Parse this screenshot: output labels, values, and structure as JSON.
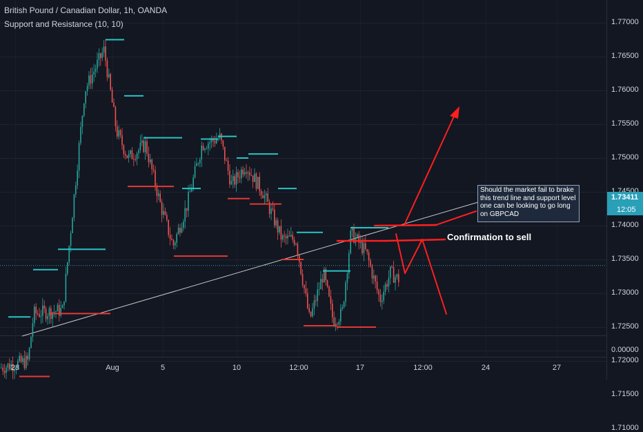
{
  "header": {
    "title": "British Pound / Canadian Dollar, 1h, OANDA",
    "indicator": "Support and Resistance (10, 10)"
  },
  "price_tag": {
    "price": "1.73411",
    "countdown": "12:05"
  },
  "annotations": {
    "note": "Should the market fail to brake this trend line and support level one can be looking to go long on GBPCAD",
    "confirm": "Confirmation to sell"
  },
  "colors": {
    "background": "#131722",
    "up": "#26a69a",
    "down": "#ef5350",
    "resistance": "#26c6c6",
    "support": "#e53935",
    "arrow": "#ff1f1f",
    "trendline": "#c8c8c8",
    "price_line": "#2a9fb8"
  },
  "chart_data": {
    "type": "candlestick",
    "symbol": "GBPCAD",
    "timeframe": "1h",
    "y_ticks": [
      "1.77000",
      "1.76500",
      "1.76000",
      "1.75500",
      "1.75000",
      "1.74500",
      "1.74000",
      "1.73500",
      "1.73000",
      "1.72500",
      "1.72000",
      "1.71500",
      "1.71000",
      "0.00000"
    ],
    "x_ticks": [
      "28",
      "Aug",
      "5",
      "10",
      "12:00",
      "17",
      "12:00",
      "24",
      "27"
    ],
    "current_price": 1.73411,
    "close_path": [
      [
        0,
        1.719
      ],
      [
        40,
        1.72
      ],
      [
        48,
        1.727
      ],
      [
        90,
        1.7275
      ],
      [
        122,
        1.76
      ],
      [
        150,
        1.766
      ],
      [
        168,
        1.754
      ],
      [
        185,
        1.75
      ],
      [
        210,
        1.752
      ],
      [
        232,
        1.743
      ],
      [
        250,
        1.737
      ],
      [
        270,
        1.743
      ],
      [
        292,
        1.752
      ],
      [
        318,
        1.753
      ],
      [
        335,
        1.746
      ],
      [
        355,
        1.749
      ],
      [
        380,
        1.745
      ],
      [
        408,
        1.738
      ],
      [
        428,
        1.738
      ],
      [
        448,
        1.726
      ],
      [
        468,
        1.733
      ],
      [
        482,
        1.726
      ],
      [
        495,
        1.727
      ],
      [
        508,
        1.739
      ],
      [
        530,
        1.736
      ],
      [
        550,
        1.729
      ],
      [
        565,
        1.733
      ],
      [
        578,
        1.732
      ]
    ],
    "resistance_levels": [
      {
        "x1": 0,
        "x2": 10,
        "price": 1.7115
      },
      {
        "x1": 12,
        "x2": 44,
        "price": 1.7265
      },
      {
        "x1": 48,
        "x2": 84,
        "price": 1.7335
      },
      {
        "x1": 84,
        "x2": 153,
        "price": 1.7365
      },
      {
        "x1": 153,
        "x2": 180,
        "price": 1.7675
      },
      {
        "x1": 180,
        "x2": 208,
        "price": 1.7592
      },
      {
        "x1": 208,
        "x2": 264,
        "price": 1.753
      },
      {
        "x1": 264,
        "x2": 291,
        "price": 1.7455
      },
      {
        "x1": 291,
        "x2": 316,
        "price": 1.7528
      },
      {
        "x1": 316,
        "x2": 343,
        "price": 1.7532
      },
      {
        "x1": 343,
        "x2": 360,
        "price": 1.75
      },
      {
        "x1": 360,
        "x2": 403,
        "price": 1.7506
      },
      {
        "x1": 403,
        "x2": 430,
        "price": 1.7455
      },
      {
        "x1": 430,
        "x2": 468,
        "price": 1.739
      },
      {
        "x1": 468,
        "x2": 508,
        "price": 1.7333
      },
      {
        "x1": 508,
        "x2": 563,
        "price": 1.7397
      }
    ],
    "support_levels": [
      {
        "x1": 0,
        "x2": 28,
        "price": 1.7158
      },
      {
        "x1": 28,
        "x2": 72,
        "price": 1.7177
      },
      {
        "x1": 72,
        "x2": 160,
        "price": 1.727
      },
      {
        "x1": 185,
        "x2": 252,
        "price": 1.7458
      },
      {
        "x1": 252,
        "x2": 330,
        "price": 1.7355
      },
      {
        "x1": 330,
        "x2": 362,
        "price": 1.744
      },
      {
        "x1": 362,
        "x2": 408,
        "price": 1.7432
      },
      {
        "x1": 408,
        "x2": 440,
        "price": 1.735
      },
      {
        "x1": 440,
        "x2": 488,
        "price": 1.7252
      },
      {
        "x1": 488,
        "x2": 545,
        "price": 1.725
      }
    ]
  }
}
